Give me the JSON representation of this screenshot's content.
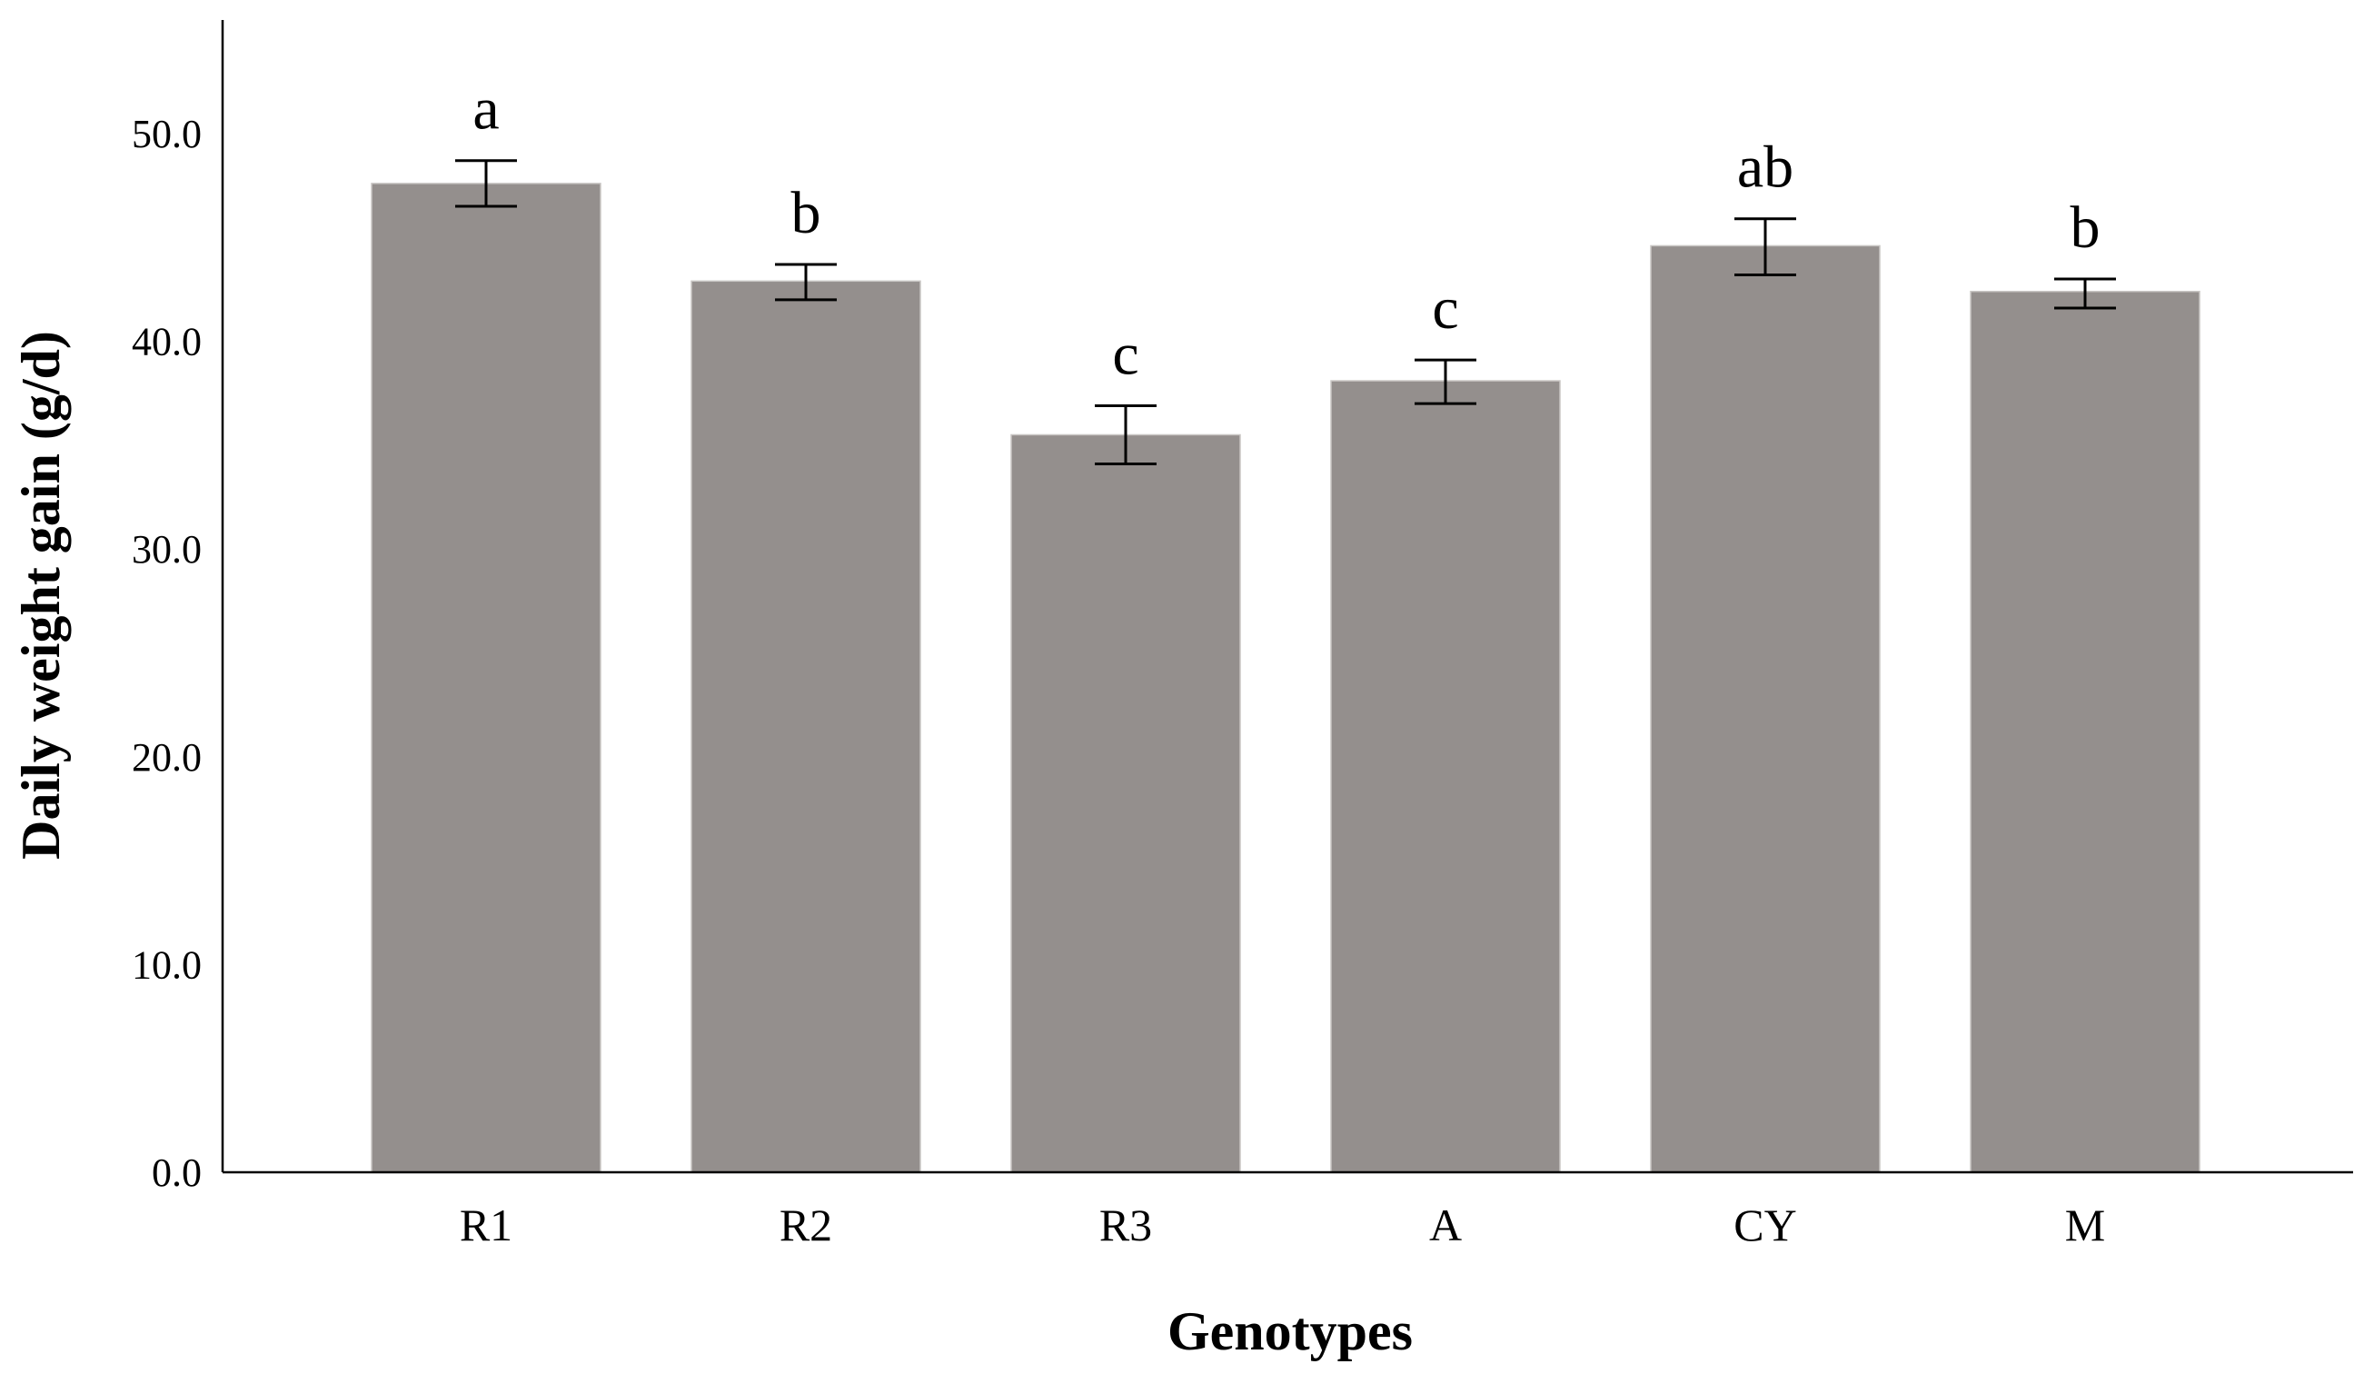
{
  "chart_data": {
    "type": "bar",
    "xlabel": "Genotypes",
    "ylabel": "Daily weight gain (g/d)",
    "ylim": [
      0,
      50
    ],
    "yticks": [
      "0.0",
      "10.0",
      "20.0",
      "30.0",
      "40.0",
      "50.0"
    ],
    "categories": [
      "R1",
      "R2",
      "R3",
      "A",
      "CY",
      "M"
    ],
    "values": [
      47.6,
      42.9,
      35.5,
      38.1,
      44.6,
      42.4
    ],
    "error_low": [
      46.5,
      42.0,
      34.1,
      37.0,
      43.2,
      41.6
    ],
    "error_high": [
      48.7,
      43.7,
      36.9,
      39.1,
      45.9,
      43.0
    ],
    "significance_letters": [
      "a",
      "b",
      "c",
      "c",
      "ab",
      "b"
    ],
    "bar_color": "#948F8D",
    "grid": false
  }
}
